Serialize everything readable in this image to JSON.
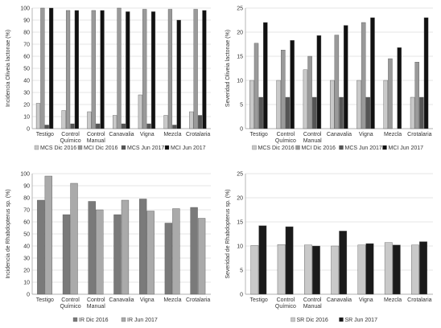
{
  "figure": {
    "background": "#ffffff"
  },
  "charts": [
    {
      "type": "bar",
      "categories": [
        "Testigo",
        "Control Químico",
        "Control Manual",
        "Canavalia",
        "Vigna",
        "Mezcla",
        "Crotalaria"
      ],
      "ylabel": "Incidencia Oliveia lactonae (%)",
      "ylim": [
        0,
        100
      ],
      "yticks": [
        0,
        10,
        20,
        30,
        40,
        50,
        60,
        70,
        80,
        90,
        100
      ],
      "grid": true,
      "legend_position": "bottom",
      "series": [
        {
          "name": "MCS Dic 2016",
          "color": "#c9c9c9",
          "values": [
            21,
            15,
            14,
            11,
            28,
            11,
            14
          ]
        },
        {
          "name": "MCI Dic 2016",
          "color": "#9a9a9a",
          "values": [
            100,
            98,
            98,
            100,
            99,
            99,
            99
          ]
        },
        {
          "name": "MCS Jun 2017",
          "color": "#555555",
          "values": [
            3,
            4,
            4,
            4,
            4,
            3,
            11
          ]
        },
        {
          "name": "MCI Jun 2017",
          "color": "#111111",
          "values": [
            100,
            98,
            98,
            97,
            97,
            90,
            98
          ]
        }
      ]
    },
    {
      "type": "bar",
      "categories": [
        "Testigo",
        "Control Químico",
        "Control Manual",
        "Canavalia",
        "Vigna",
        "Mezcla",
        "Crotalaria"
      ],
      "ylabel": "Severidad Oliveia lactonae (%)",
      "ylim": [
        0,
        25
      ],
      "yticks": [
        0,
        5,
        10,
        15,
        20,
        25
      ],
      "grid": true,
      "legend_position": "bottom",
      "series": [
        {
          "name": "MCS Dic 2016",
          "color": "#c9c9c9",
          "values": [
            10,
            10,
            12.2,
            10,
            10,
            10,
            6.5
          ]
        },
        {
          "name": "MCI Dic 2016",
          "color": "#9a9a9a",
          "values": [
            17.7,
            16.3,
            15,
            19.4,
            22,
            14.5,
            13.8
          ]
        },
        {
          "name": "MCS Jun 2017",
          "color": "#555555",
          "values": [
            6.5,
            6.5,
            6.5,
            6.5,
            6.5,
            0,
            6.5
          ]
        },
        {
          "name": "MCI Jun 2017",
          "color": "#111111",
          "values": [
            22,
            18.3,
            19.3,
            21.4,
            23,
            16.8,
            23
          ]
        }
      ]
    },
    {
      "type": "bar",
      "categories": [
        "Testigo",
        "Control Químico",
        "Control Manual",
        "Canavalia",
        "Vigna",
        "Mezcla",
        "Crotalaria"
      ],
      "ylabel": "Incidencia de Rhabdopterus sp. (%)",
      "ylim": [
        0,
        100
      ],
      "yticks": [
        0,
        10,
        20,
        30,
        40,
        50,
        60,
        70,
        80,
        90,
        100
      ],
      "grid": true,
      "legend_position": "bottom",
      "series": [
        {
          "name": "IR Dic 2016",
          "color": "#7a7a7a",
          "values": [
            78,
            66,
            77,
            66,
            79,
            59,
            72
          ]
        },
        {
          "name": "IR Jun 2017",
          "color": "#aaaaaa",
          "values": [
            98,
            92,
            70,
            78,
            69,
            71,
            63
          ]
        }
      ]
    },
    {
      "type": "bar",
      "categories": [
        "Testigo",
        "Control Químico",
        "Control Manual",
        "Canavalia",
        "Vigna",
        "Mezcla",
        "Crotalaria"
      ],
      "ylabel": "Severidad de Rhabdopterus sp. (%)",
      "ylim": [
        0,
        25
      ],
      "yticks": [
        0,
        5,
        10,
        15,
        20,
        25
      ],
      "grid": true,
      "legend_position": "bottom",
      "series": [
        {
          "name": "SR Dic 2016",
          "color": "#c9c9c9",
          "values": [
            10.1,
            10.3,
            10.2,
            10,
            10.2,
            10.7,
            10.2
          ]
        },
        {
          "name": "SR Jun 2017",
          "color": "#1a1a1a",
          "values": [
            14.2,
            14,
            10,
            13.1,
            10.5,
            10.2,
            10.9
          ]
        }
      ]
    }
  ]
}
